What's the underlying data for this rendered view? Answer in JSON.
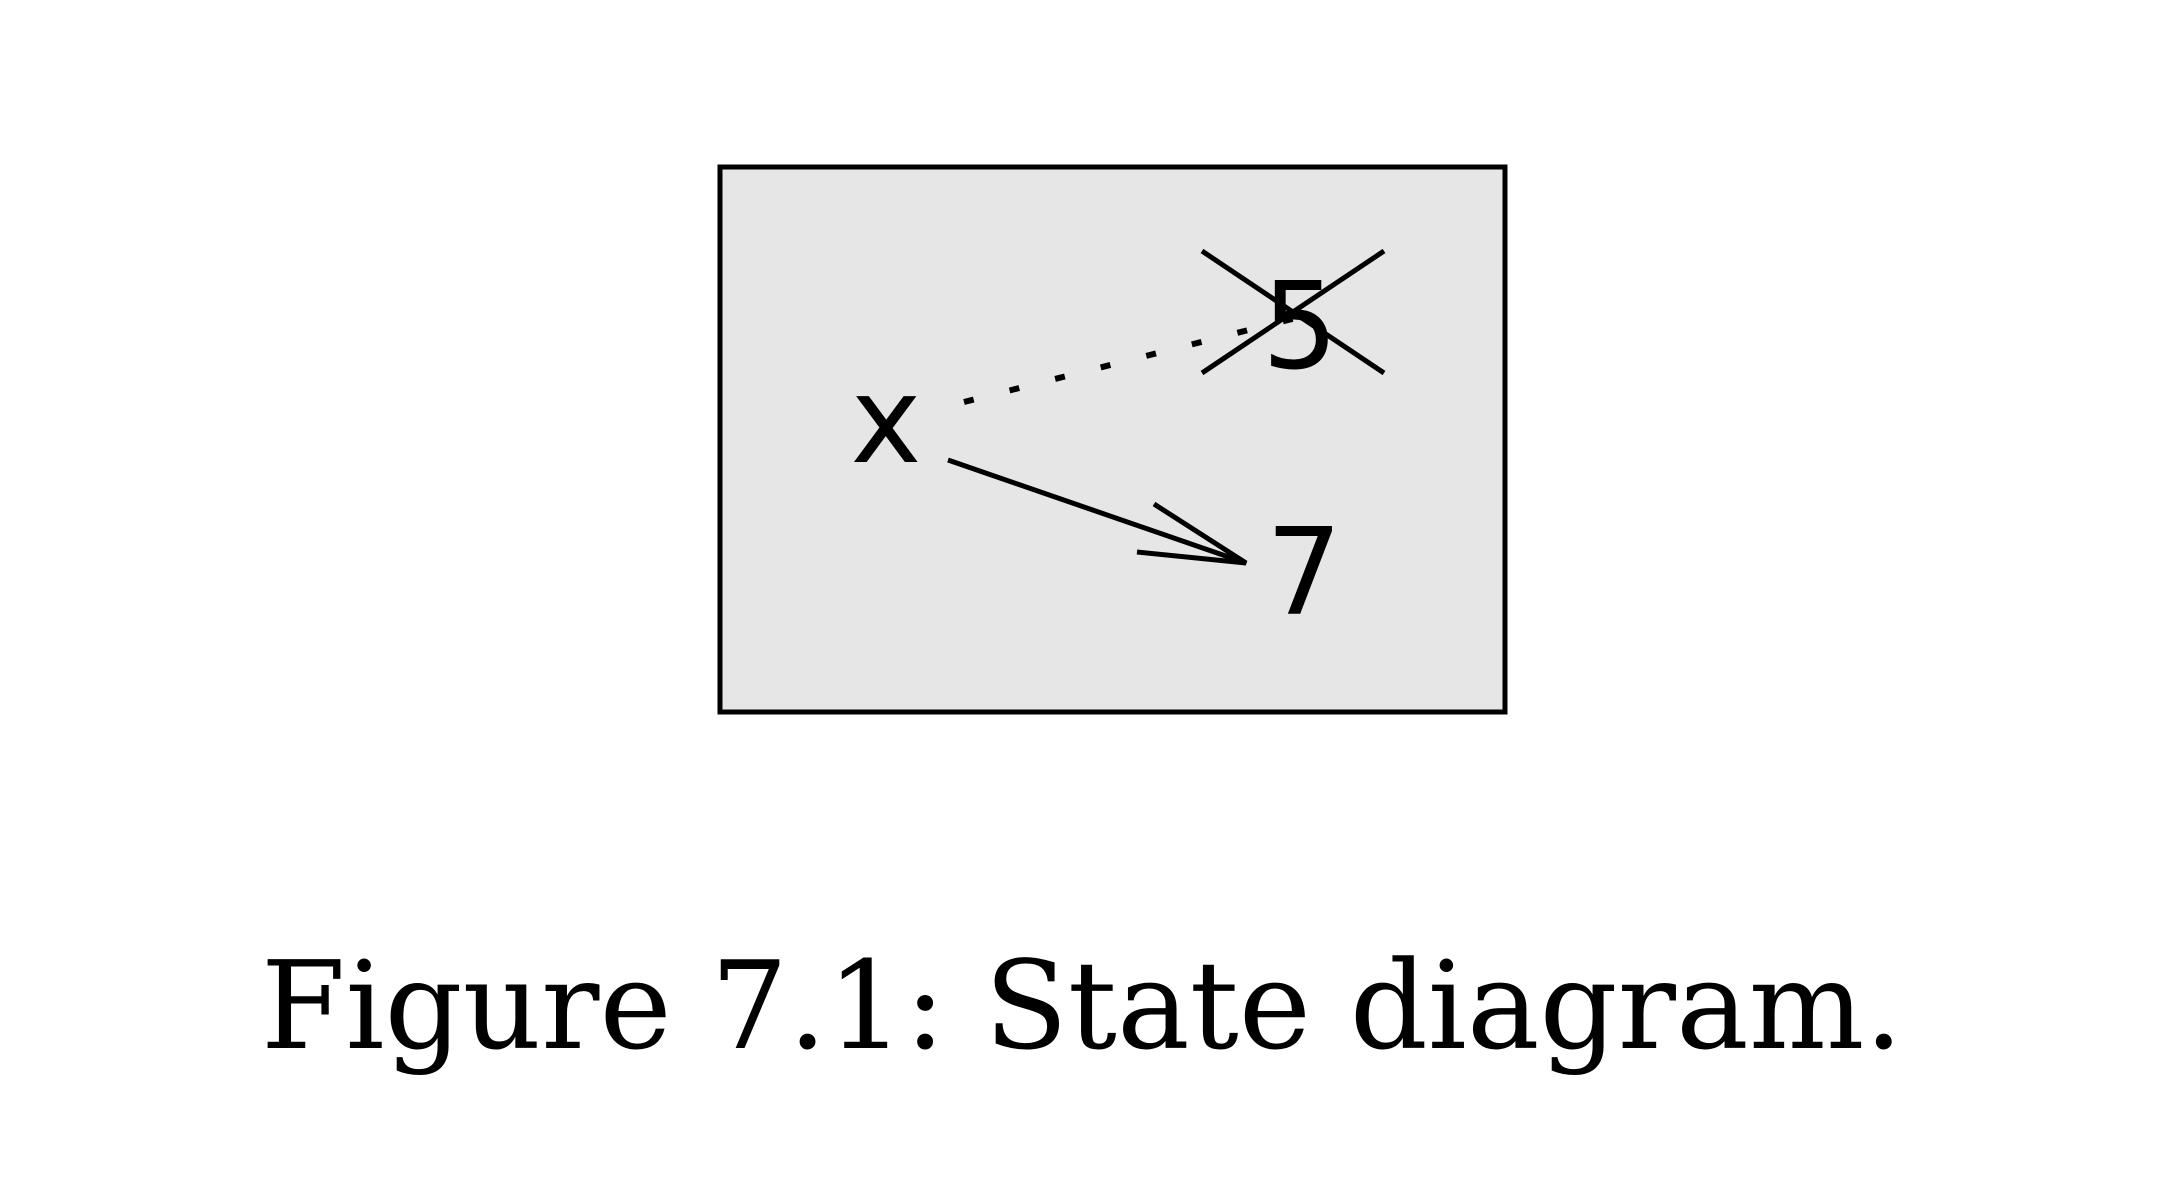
{
  "diagram": {
    "variable": "x",
    "old_value": "5",
    "new_value": "7",
    "box_fill": "#e6e6e6",
    "stroke_color": "#000000"
  },
  "caption": "Figure 7.1: State diagram."
}
